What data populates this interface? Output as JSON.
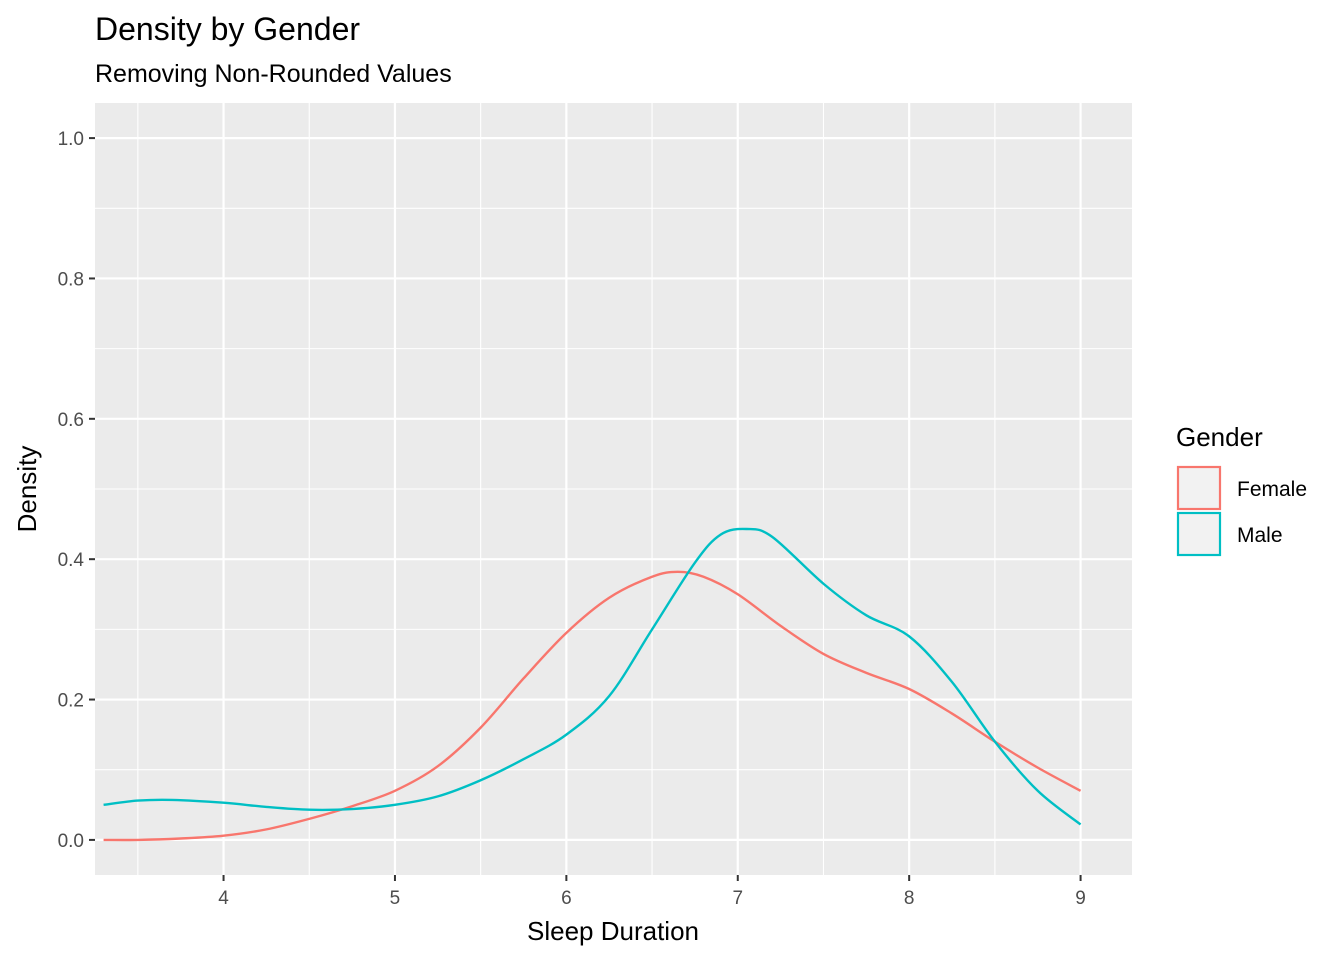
{
  "chart_data": {
    "type": "line",
    "title": "Density by Gender",
    "subtitle": "Removing Non-Rounded Values",
    "xlabel": "Sleep Duration",
    "ylabel": "Density",
    "xlim": [
      3.25,
      9.3
    ],
    "ylim": [
      -0.05,
      1.05
    ],
    "x_ticks": [
      4,
      5,
      6,
      7,
      8,
      9
    ],
    "x_tick_labels": [
      "4",
      "5",
      "6",
      "7",
      "8",
      "9"
    ],
    "y_ticks": [
      0.0,
      0.2,
      0.4,
      0.6,
      0.8,
      1.0
    ],
    "y_tick_labels": [
      "0.0",
      "0.2",
      "0.4",
      "0.6",
      "0.8",
      "1.0"
    ],
    "grid": true,
    "legend": {
      "title": "Gender",
      "position": "right"
    },
    "series": [
      {
        "name": "Female",
        "color": "#F8766D",
        "points": [
          [
            3.3,
            0.0
          ],
          [
            3.5,
            0.0
          ],
          [
            3.75,
            0.002
          ],
          [
            4.0,
            0.006
          ],
          [
            4.25,
            0.015
          ],
          [
            4.5,
            0.03
          ],
          [
            4.75,
            0.048
          ],
          [
            5.0,
            0.07
          ],
          [
            5.25,
            0.105
          ],
          [
            5.5,
            0.16
          ],
          [
            5.75,
            0.23
          ],
          [
            6.0,
            0.295
          ],
          [
            6.25,
            0.345
          ],
          [
            6.5,
            0.375
          ],
          [
            6.65,
            0.382
          ],
          [
            6.8,
            0.375
          ],
          [
            7.0,
            0.35
          ],
          [
            7.25,
            0.305
          ],
          [
            7.5,
            0.265
          ],
          [
            7.75,
            0.238
          ],
          [
            8.0,
            0.215
          ],
          [
            8.25,
            0.18
          ],
          [
            8.5,
            0.14
          ],
          [
            8.75,
            0.103
          ],
          [
            9.0,
            0.07
          ]
        ]
      },
      {
        "name": "Male",
        "color": "#00BFC4",
        "points": [
          [
            3.3,
            0.05
          ],
          [
            3.5,
            0.056
          ],
          [
            3.7,
            0.057
          ],
          [
            4.0,
            0.053
          ],
          [
            4.25,
            0.047
          ],
          [
            4.5,
            0.043
          ],
          [
            4.75,
            0.044
          ],
          [
            5.0,
            0.05
          ],
          [
            5.25,
            0.062
          ],
          [
            5.5,
            0.085
          ],
          [
            5.75,
            0.115
          ],
          [
            6.0,
            0.15
          ],
          [
            6.25,
            0.205
          ],
          [
            6.5,
            0.3
          ],
          [
            6.75,
            0.395
          ],
          [
            6.9,
            0.435
          ],
          [
            7.05,
            0.443
          ],
          [
            7.2,
            0.432
          ],
          [
            7.5,
            0.365
          ],
          [
            7.75,
            0.32
          ],
          [
            8.0,
            0.29
          ],
          [
            8.25,
            0.225
          ],
          [
            8.5,
            0.14
          ],
          [
            8.75,
            0.07
          ],
          [
            9.0,
            0.022
          ]
        ]
      }
    ]
  }
}
